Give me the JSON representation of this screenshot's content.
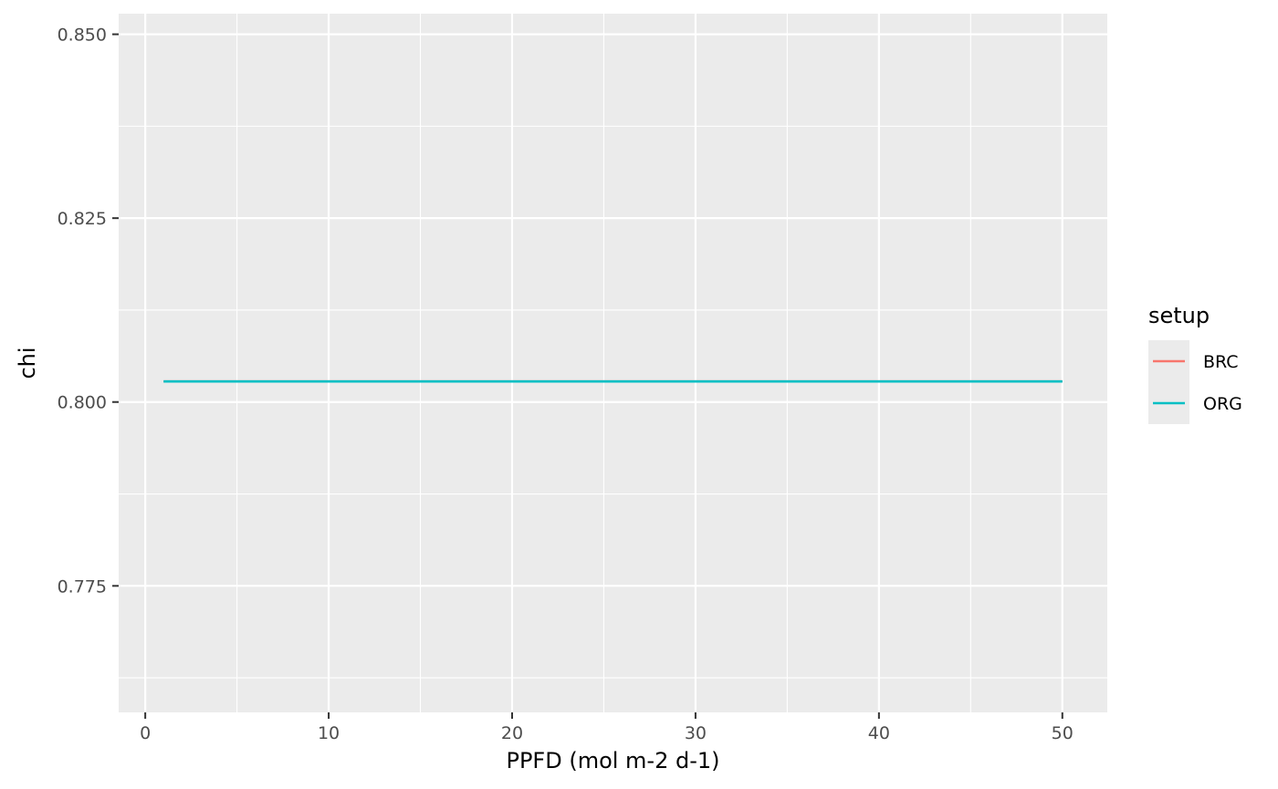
{
  "chart_data": {
    "type": "line",
    "title": "",
    "xlabel": "PPFD (mol m-2 d-1)",
    "ylabel": "chi",
    "xlim": [
      -1.45,
      52.45
    ],
    "ylim": [
      0.7578,
      0.8528
    ],
    "x_ticks": [
      0,
      10,
      20,
      30,
      40,
      50
    ],
    "x_tick_labels": [
      "0",
      "10",
      "20",
      "30",
      "40",
      "50"
    ],
    "x_minor_ticks": [
      5,
      15,
      25,
      35,
      45
    ],
    "y_ticks": [
      0.775,
      0.8,
      0.825,
      0.85
    ],
    "y_tick_labels": [
      "0.775",
      "0.800",
      "0.825",
      "0.850"
    ],
    "y_minor_ticks": [
      0.7625,
      0.7875,
      0.8125,
      0.8375
    ],
    "grid": true,
    "panel_background": "#EBEBEB",
    "grid_color": "#FFFFFF",
    "legend": {
      "title": "setup",
      "position": "right",
      "entries": [
        {
          "label": "BRC",
          "color": "#F8766D"
        },
        {
          "label": "ORG",
          "color": "#00BFC4"
        }
      ]
    },
    "series": [
      {
        "name": "BRC",
        "color": "#F8766D",
        "x": [
          1,
          50
        ],
        "y": [
          0.8028,
          0.8028
        ]
      },
      {
        "name": "ORG",
        "color": "#00BFC4",
        "x": [
          1,
          50
        ],
        "y": [
          0.8028,
          0.8028
        ]
      }
    ]
  }
}
